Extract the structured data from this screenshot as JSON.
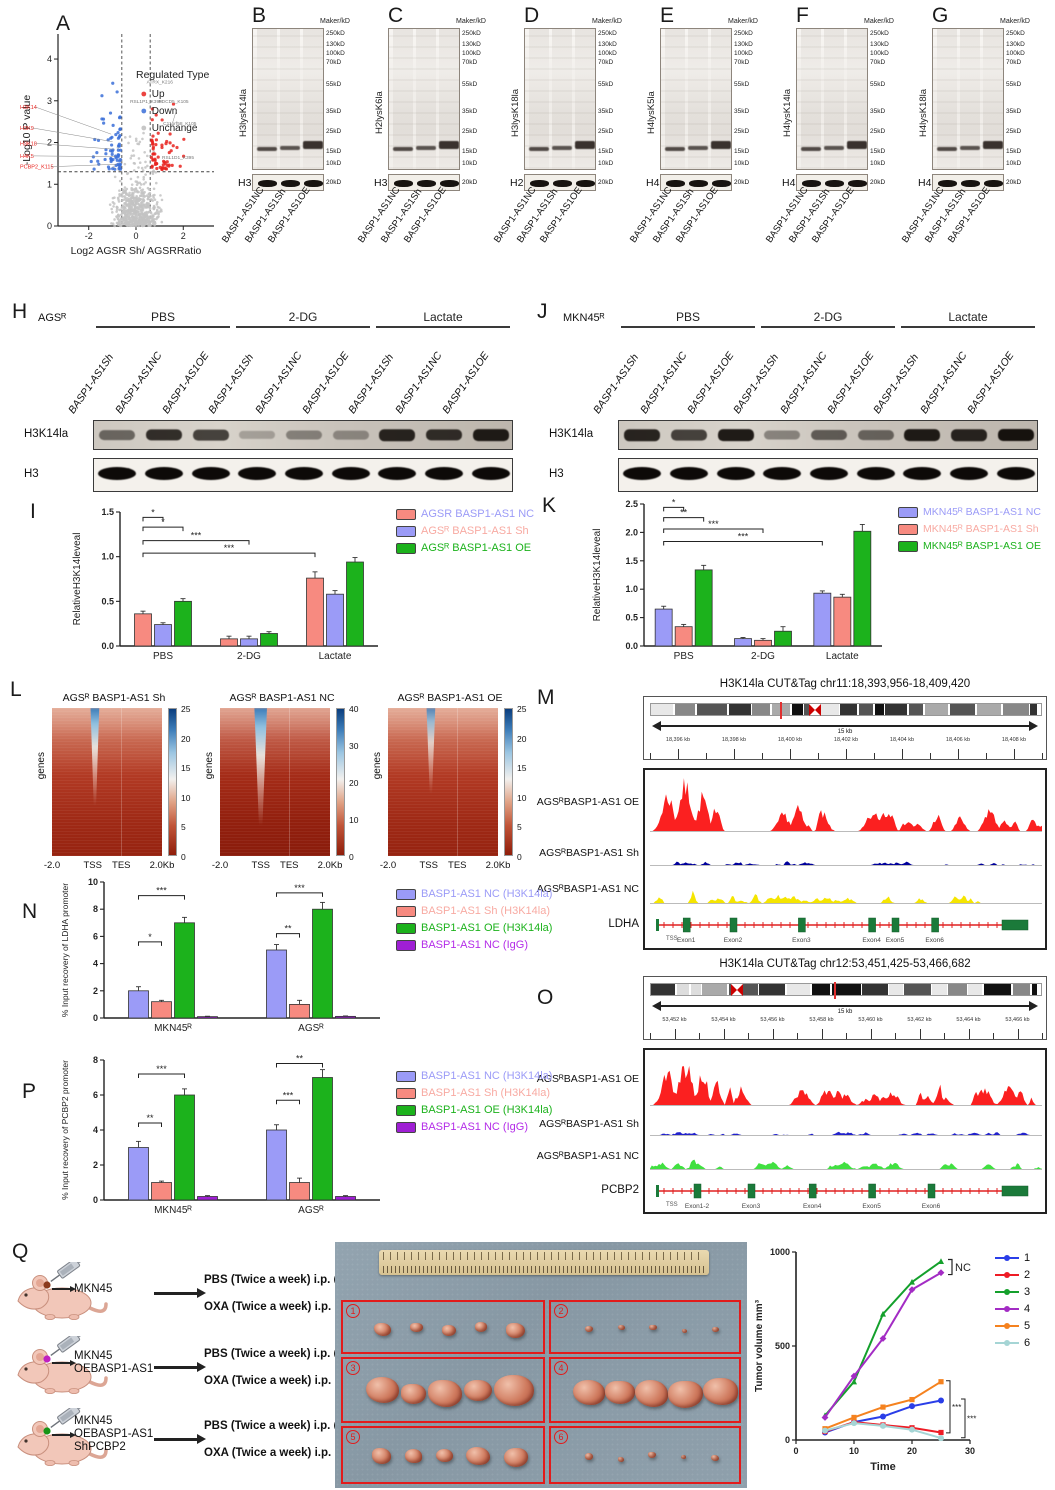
{
  "panels": {
    "blots": {
      "marker_title": "Maker/kD",
      "markers": [
        "250kD",
        "130kD",
        "100kD",
        "70kD",
        "55kD",
        "35kD",
        "25kD",
        "15kD",
        "10kD"
      ],
      "control_kd": "20kD",
      "lanes": [
        "BASP1-AS1NC",
        "BASP1-AS1Sh",
        "BASP1-AS1OE"
      ],
      "panels": [
        {
          "letter": "B",
          "antibody": "H3lysK14la",
          "control": "H3"
        },
        {
          "letter": "C",
          "antibody": "H2lysK6la",
          "control": "H3"
        },
        {
          "letter": "D",
          "antibody": "H3lysK18la",
          "control": "H2"
        },
        {
          "letter": "E",
          "antibody": "H4lysK5la",
          "control": "H4"
        },
        {
          "letter": "F",
          "antibody": "H4lysK14la",
          "control": "H4"
        },
        {
          "letter": "G",
          "antibody": "H4lysK18la",
          "control": "H4"
        }
      ]
    },
    "H": {
      "letter": "H",
      "cell": "AGSᴿ",
      "groups": [
        "PBS",
        "2-DG",
        "Lactate"
      ],
      "lanes": [
        "BASP1-AS1Sh",
        "BASP1-AS1NC",
        "BASP1-AS1OE"
      ],
      "row1": "H3K14la",
      "row2": "H3",
      "band_intensities": [
        0.55,
        0.85,
        0.75,
        0.25,
        0.4,
        0.35,
        0.9,
        0.85,
        0.95
      ]
    },
    "J": {
      "letter": "J",
      "cell": "MKN45ᴿ",
      "groups": [
        "PBS",
        "2-DG",
        "Lactate"
      ],
      "lanes": [
        "BASP1-AS1Sh",
        "BASP1-AS1NC",
        "BASP1-AS1OE"
      ],
      "row1": "H3K14la",
      "row2": "H3",
      "band_intensities": [
        0.9,
        0.75,
        0.95,
        0.4,
        0.6,
        0.55,
        0.95,
        0.9,
        1.0
      ]
    },
    "M": {
      "letter": "M",
      "title": "H3K14la CUT&Tag chr11:18,393,956-18,409,420",
      "scale": "15 kb",
      "ruler": [
        "18,396 kb",
        "18,398 kb",
        "18,400 kb",
        "18,402 kb",
        "18,404 kb",
        "18,406 kb",
        "18,408 kb"
      ],
      "tracks": [
        {
          "name": "AGSᴿBASP1-AS1 OE",
          "color": "#fb2020"
        },
        {
          "name": "AGSᴿBASP1-AS1 Sh",
          "color": "#00009b"
        },
        {
          "name": "AGSᴿBASP1-AS1 NC",
          "color": "#f5e500"
        }
      ],
      "gene": {
        "name": "LDHA",
        "tss": "TSS",
        "exons": [
          "Exon1",
          "Exon2",
          "Exon3",
          "Exon4",
          "Exon5",
          "Exon6"
        ]
      }
    },
    "O": {
      "letter": "O",
      "title": "H3K14la CUT&Tag chr12:53,451,425-53,466,682",
      "scale": "15 kb",
      "ruler": [
        "53,452 kb",
        "53,454 kb",
        "53,456 kb",
        "53,458 kb",
        "53,460 kb",
        "53,462 kb",
        "53,464 kb",
        "53,466 kb"
      ],
      "tracks": [
        {
          "name": "AGSᴿBASP1-AS1 OE",
          "color": "#fb2020"
        },
        {
          "name": "AGSᴿBASP1-AS1 Sh",
          "color": "#2222cc"
        },
        {
          "name": "AGSᴿBASP1-AS1 NC",
          "color": "#41e041"
        }
      ],
      "gene": {
        "name": "PCBP2",
        "tss": "TSS",
        "exons": [
          "Exon1-2",
          "Exon3",
          "Exon4",
          "Exon5",
          "Exon6"
        ]
      }
    },
    "Q": {
      "letter": "Q",
      "mice": [
        {
          "lines": [
            "MKN45"
          ],
          "dot": "#8b3a1e",
          "arms": [
            {
              "label": "PBS (Twice a week) i.p.",
              "num": "1"
            },
            {
              "label": "OXA (Twice a week) i.p.",
              "num": "2"
            }
          ]
        },
        {
          "lines": [
            "MKN45",
            "OEBASP1-AS1"
          ],
          "dot": "#c020c0",
          "arms": [
            {
              "label": "PBS (Twice a week) i.p.",
              "num": "3"
            },
            {
              "label": "OXA (Twice a week) i.p.",
              "num": "4"
            }
          ]
        },
        {
          "lines": [
            "MKN45",
            "OEBASP1-AS1",
            "ShPCBP2"
          ],
          "dot": "#169416",
          "arms": [
            {
              "label": "PBS (Twice a week) i.p.",
              "num": "5"
            },
            {
              "label": "OXA (Twice a week) i.p.",
              "num": "6"
            }
          ]
        }
      ],
      "photo_boxes": [
        {
          "num": "1",
          "size": "small"
        },
        {
          "num": "2",
          "size": "tiny"
        },
        {
          "num": "3",
          "size": "large"
        },
        {
          "num": "4",
          "size": "large"
        },
        {
          "num": "5",
          "size": "medium"
        },
        {
          "num": "6",
          "size": "tiny"
        }
      ]
    }
  },
  "chart_data": [
    {
      "id": "A",
      "letter": "A",
      "type": "scatter",
      "xlabel": "Log2 AGSR Sh/ AGSRRatio",
      "ylabel": "-Log10 P value",
      "xlim": [
        -3.3,
        3.3
      ],
      "ylim": [
        0,
        4.6
      ],
      "xticks": [
        -2,
        0,
        2
      ],
      "yticks": [
        0,
        1,
        2,
        3,
        4
      ],
      "legend_title": "Regulated Type",
      "groups": [
        {
          "name": "Up",
          "color": "#e8231f"
        },
        {
          "name": "Down",
          "color": "#3a6fd8"
        },
        {
          "name": "Unchange",
          "color": "#bdbdbd"
        }
      ],
      "thresholds": {
        "x": [
          -0.6,
          0.6
        ],
        "y": 1.3
      },
      "labeled_points_down": [
        "H3K14",
        "H3K9",
        "H3K18",
        "H4K5",
        "PCBP2_K115"
      ],
      "labeled_points_up": [
        "ATRX_K216",
        "RSL1P1_K395",
        "PDCD5_K105",
        "C11orf58_K105",
        "RSL1D1_K395"
      ]
    },
    {
      "id": "I",
      "letter": "I",
      "type": "bar",
      "categories": [
        "PBS",
        "2-DG",
        "Lactate"
      ],
      "ylabel": "RelativeH3K14leveal",
      "ylim": [
        0,
        1.5
      ],
      "yticks": [
        "0.0",
        "0.5",
        "1.0",
        "1.5"
      ],
      "series": [
        {
          "name": "AGSR BASP1-AS1 NC",
          "color": "#f78a80",
          "label_color": "#9b9bf7",
          "values": [
            0.36,
            0.08,
            0.76
          ],
          "errors": [
            0.03,
            0.03,
            0.07
          ]
        },
        {
          "name": "AGSᴿ BASP1-AS1 Sh",
          "color": "#9b9bf7",
          "label_color": "#f8aaa2",
          "values": [
            0.24,
            0.08,
            0.58
          ],
          "errors": [
            0.02,
            0.03,
            0.04
          ]
        },
        {
          "name": "AGSᴿ BASP1-AS1 OE",
          "color": "#1cb21c",
          "label_color": "#1cb21c",
          "values": [
            0.5,
            0.14,
            0.94
          ],
          "errors": [
            0.03,
            0.02,
            0.05
          ]
        }
      ],
      "sig": [
        "*",
        "*",
        "***",
        "***"
      ]
    },
    {
      "id": "K",
      "letter": "K",
      "type": "bar",
      "categories": [
        "PBS",
        "2-DG",
        "Lactate"
      ],
      "ylabel": "RelativeH3K14leveal",
      "ylim": [
        0,
        2.5
      ],
      "yticks": [
        "0.0",
        "0.5",
        "1.0",
        "1.5",
        "2.0",
        "2.5"
      ],
      "series": [
        {
          "name": "MKN45ᴿ BASP1-AS1 NC",
          "color": "#9b9bf7",
          "label_color": "#9b9bf7",
          "values": [
            0.65,
            0.13,
            0.93
          ],
          "errors": [
            0.05,
            0.02,
            0.04
          ]
        },
        {
          "name": "MKN45ᴿ BASP1-AS1 Sh",
          "color": "#f78a80",
          "label_color": "#f8aaa2",
          "values": [
            0.34,
            0.1,
            0.86
          ],
          "errors": [
            0.04,
            0.03,
            0.05
          ]
        },
        {
          "name": "MKN45ᴿ BASP1-AS1 OE",
          "color": "#1cb21c",
          "label_color": "#1cb21c",
          "values": [
            1.34,
            0.26,
            2.02
          ],
          "errors": [
            0.08,
            0.08,
            0.12
          ]
        }
      ],
      "sig": [
        "*",
        "**",
        "***",
        "***"
      ]
    },
    {
      "id": "L",
      "letter": "L",
      "type": "heatmap",
      "ylabel": "genes",
      "xticks": [
        "-2.0",
        "TSS",
        "TES",
        "2.0Kb"
      ],
      "maps": [
        {
          "title": "AGSᴿ BASP1-AS1 Sh",
          "colorbar_max": 25,
          "colorbar_ticks": [
            "0",
            "5",
            "10",
            "15",
            "20",
            "25"
          ]
        },
        {
          "title": "AGSᴿ BASP1-AS1 NC",
          "colorbar_max": 40,
          "colorbar_ticks": [
            "0",
            "10",
            "20",
            "30",
            "40"
          ]
        },
        {
          "title": "AGSᴿ BASP1-AS1 OE",
          "colorbar_max": 25,
          "colorbar_ticks": [
            "0",
            "5",
            "10",
            "15",
            "20",
            "25"
          ]
        }
      ]
    },
    {
      "id": "N",
      "letter": "N",
      "type": "bar",
      "categories": [
        "MKN45ᴿ",
        "AGSᴿ"
      ],
      "ylabel": "% Input recovery of LDHA promoter",
      "ylim": [
        0,
        10
      ],
      "yticks": [
        "0",
        "2",
        "4",
        "6",
        "8",
        "10"
      ],
      "series": [
        {
          "name": "BASP1-AS1 NC (H3K14la)",
          "color": "#9b9bf7",
          "label_color": "#9b9bf7",
          "values": [
            2.0,
            5.0
          ],
          "errors": [
            0.3,
            0.4
          ]
        },
        {
          "name": "BASP1-AS1 Sh (H3K14la)",
          "color": "#f78a80",
          "label_color": "#f8aaa2",
          "values": [
            1.2,
            1.0
          ],
          "errors": [
            0.1,
            0.3
          ]
        },
        {
          "name": "BASP1-AS1 OE (H3K14la)",
          "color": "#1cb21c",
          "label_color": "#1cb21c",
          "values": [
            7.0,
            8.0
          ],
          "errors": [
            0.4,
            0.5
          ]
        },
        {
          "name": "BASP1-AS1 NC (IgG)",
          "color": "#9f1fd4",
          "label_color": "#b32ce8",
          "values": [
            0.1,
            0.12
          ],
          "errors": [
            0.03,
            0.03
          ]
        }
      ],
      "sig": [
        "*",
        "***",
        "**",
        "***"
      ]
    },
    {
      "id": "P",
      "letter": "P",
      "type": "bar",
      "categories": [
        "MKN45ᴿ",
        "AGSᴿ"
      ],
      "ylabel": "% Input recovery of PCBP2 promoter",
      "ylim": [
        0,
        8
      ],
      "yticks": [
        "0",
        "2",
        "4",
        "6",
        "8"
      ],
      "series": [
        {
          "name": "BASP1-AS1 NC (H3K14la)",
          "color": "#9b9bf7",
          "label_color": "#9b9bf7",
          "values": [
            3.0,
            4.0
          ],
          "errors": [
            0.35,
            0.3
          ]
        },
        {
          "name": "BASP1-AS1 Sh (H3K14la)",
          "color": "#f78a80",
          "label_color": "#f8aaa2",
          "values": [
            1.0,
            1.0
          ],
          "errors": [
            0.08,
            0.25
          ]
        },
        {
          "name": "BASP1-AS1 OE (H3K14la)",
          "color": "#1cb21c",
          "label_color": "#1cb21c",
          "values": [
            6.0,
            7.0
          ],
          "errors": [
            0.35,
            0.45
          ]
        },
        {
          "name": "BASP1-AS1 NC (IgG)",
          "color": "#9f1fd4",
          "label_color": "#b32ce8",
          "values": [
            0.2,
            0.2
          ],
          "errors": [
            0.05,
            0.05
          ]
        }
      ],
      "sig": [
        "**",
        "***",
        "***",
        "**"
      ]
    },
    {
      "id": "Q",
      "type": "line",
      "x": [
        5,
        10,
        15,
        20,
        25
      ],
      "xlabel": "Time",
      "ylabel": "Tumor volume mm³",
      "ylim": [
        0,
        1000
      ],
      "xticks": [
        0,
        10,
        20,
        30
      ],
      "yticks": [
        0,
        500,
        1000
      ],
      "series": [
        {
          "name": "1",
          "color": "#2a3ee8",
          "values": [
            40,
            95,
            125,
            180,
            210
          ]
        },
        {
          "name": "2",
          "color": "#ee1c25",
          "values": [
            45,
            95,
            80,
            65,
            40
          ]
        },
        {
          "name": "3",
          "color": "#14a02c",
          "values": [
            130,
            310,
            670,
            840,
            950
          ]
        },
        {
          "name": "4",
          "color": "#a32cc4",
          "values": [
            120,
            340,
            540,
            800,
            890
          ]
        },
        {
          "name": "5",
          "color": "#f5821f",
          "values": [
            60,
            120,
            175,
            215,
            310
          ]
        },
        {
          "name": "6",
          "color": "#a5d5d5",
          "values": [
            50,
            90,
            75,
            55,
            10
          ]
        }
      ],
      "annotations": {
        "nc": "NC",
        "sig": [
          "***",
          "***"
        ]
      }
    }
  ]
}
